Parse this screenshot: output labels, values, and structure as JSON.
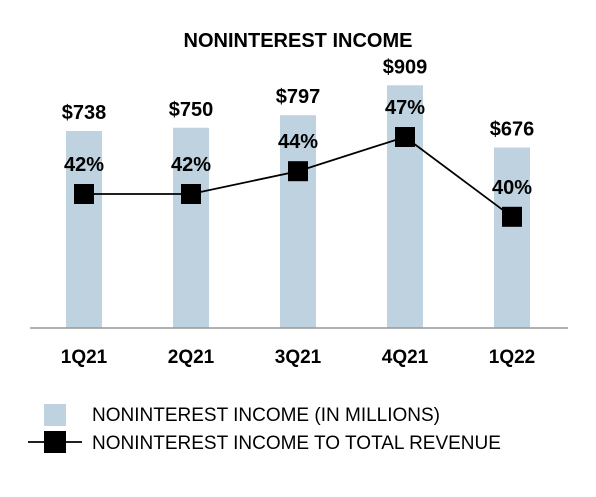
{
  "chart_data": {
    "type": "bar",
    "title": "NONINTEREST INCOME",
    "categories": [
      "1Q21",
      "2Q21",
      "3Q21",
      "4Q21",
      "1Q22"
    ],
    "series": [
      {
        "name": "NONINTEREST INCOME (IN MILLIONS)",
        "type": "bar",
        "values": [
          738,
          750,
          797,
          909,
          676
        ],
        "labels": [
          "$738",
          "$750",
          "$797",
          "$909",
          "$676"
        ],
        "color": "#bed3df"
      },
      {
        "name": "NONINTEREST INCOME TO TOTAL REVENUE",
        "type": "line",
        "values": [
          42,
          42,
          44,
          47,
          40
        ],
        "labels": [
          "42%",
          "42%",
          "44%",
          "47%",
          "40%"
        ],
        "color": "#000000"
      }
    ],
    "legend_position": "bottom",
    "grid": false
  }
}
